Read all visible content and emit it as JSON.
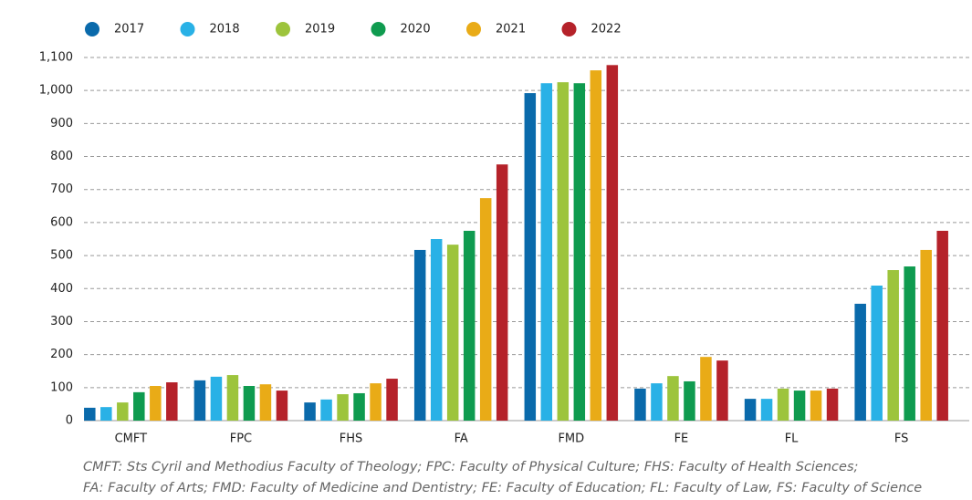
{
  "chart_data": {
    "type": "bar",
    "categories": [
      "CMFT",
      "FPC",
      "FHS",
      "FA",
      "FMD",
      "FE",
      "FL",
      "FS"
    ],
    "series": [
      {
        "name": "2017",
        "color": "#0a6aab",
        "values": [
          39,
          122,
          55,
          517,
          992,
          97,
          66,
          354
        ]
      },
      {
        "name": "2018",
        "color": "#29b1e6",
        "values": [
          41,
          133,
          64,
          550,
          1022,
          113,
          66,
          409
        ]
      },
      {
        "name": "2019",
        "color": "#9dc43c",
        "values": [
          55,
          138,
          80,
          533,
          1025,
          135,
          97,
          456
        ]
      },
      {
        "name": "2020",
        "color": "#0f9b4f",
        "values": [
          86,
          105,
          83,
          575,
          1022,
          119,
          91,
          467
        ]
      },
      {
        "name": "2021",
        "color": "#e9ab17",
        "values": [
          105,
          110,
          113,
          674,
          1061,
          193,
          91,
          517
        ]
      },
      {
        "name": "2022",
        "color": "#b5222a",
        "values": [
          116,
          91,
          127,
          776,
          1077,
          182,
          97,
          575
        ]
      }
    ],
    "ylim": [
      0,
      1100
    ],
    "yticks": [
      0,
      100,
      200,
      300,
      400,
      500,
      600,
      700,
      800,
      900,
      {
        "value": 1000,
        "label": "1,000"
      },
      {
        "value": 1100,
        "label": "1,100"
      }
    ],
    "grid": true,
    "legend": "top",
    "footnote": [
      "CMFT: Sts Cyril and Methodius Faculty of Theology; FPC: Faculty of Physical Culture; FHS: Faculty of Health Sciences;",
      "FA: Faculty of Arts; FMD: Faculty of Medicine and Dentistry; FE: Faculty of Education; FL: Faculty of Law, FS: Faculty of Science"
    ]
  }
}
